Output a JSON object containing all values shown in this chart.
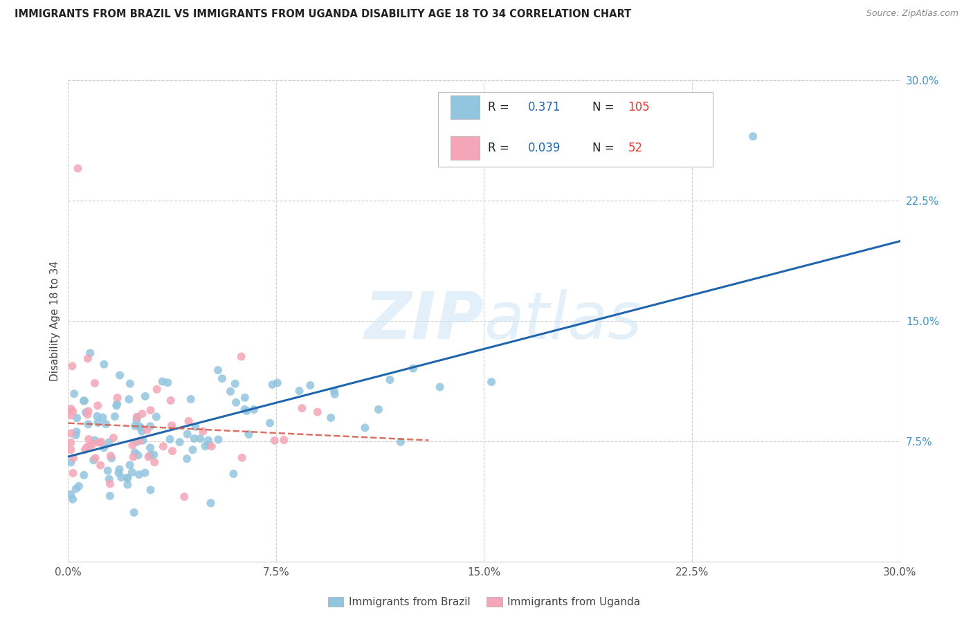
{
  "title": "IMMIGRANTS FROM BRAZIL VS IMMIGRANTS FROM UGANDA DISABILITY AGE 18 TO 34 CORRELATION CHART",
  "source": "Source: ZipAtlas.com",
  "ylabel": "Disability Age 18 to 34",
  "xlim": [
    0.0,
    0.3
  ],
  "ylim": [
    0.0,
    0.3
  ],
  "brazil_color": "#92c5de",
  "uganda_color": "#f4a6b8",
  "brazil_line_color": "#2166ac",
  "uganda_line_color": "#d6604d",
  "brazil_R": 0.371,
  "brazil_N": 105,
  "uganda_R": 0.039,
  "uganda_N": 52,
  "watermark_zip": "ZIP",
  "watermark_atlas": "atlas",
  "right_tick_color": "#4393c3"
}
